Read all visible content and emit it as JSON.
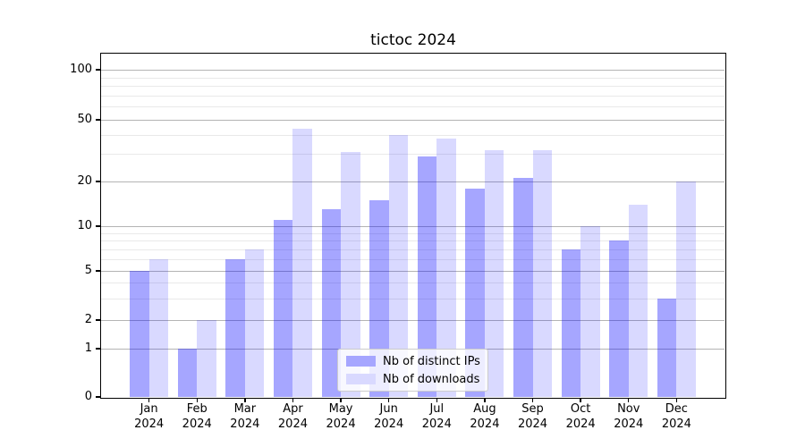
{
  "title": "tictoc 2024",
  "chart_data": {
    "type": "bar",
    "title": "tictoc 2024",
    "categories": [
      "Jan 2024",
      "Feb 2024",
      "Mar 2024",
      "Apr 2024",
      "May 2024",
      "Jun 2024",
      "Jul 2024",
      "Aug 2024",
      "Sep 2024",
      "Oct 2024",
      "Nov 2024",
      "Dec 2024"
    ],
    "x_months": [
      "Jan",
      "Feb",
      "Mar",
      "Apr",
      "May",
      "Jun",
      "Jul",
      "Aug",
      "Sep",
      "Oct",
      "Nov",
      "Dec"
    ],
    "x_year": "2024",
    "series": [
      {
        "name": "Nb of distinct IPs",
        "values": [
          5,
          1,
          6,
          11,
          13,
          15,
          29,
          18,
          21,
          7,
          8,
          3
        ],
        "solid_color": "#a6a6ff",
        "css_color": "rgba(0,0,255,0.35)"
      },
      {
        "name": "Nb of downloads",
        "values": [
          6,
          2,
          7,
          44,
          31,
          40,
          38,
          32,
          32,
          10,
          14,
          20
        ],
        "solid_color": "#d9d9ff",
        "css_color": "rgba(0,0,255,0.15)"
      }
    ],
    "yscale": "symlog",
    "major_yticks": [
      0,
      1,
      2,
      5,
      10,
      20,
      50,
      100
    ],
    "minor_yticks": [
      3,
      4,
      6,
      7,
      8,
      9,
      30,
      40,
      60,
      70,
      80,
      90
    ],
    "ylim": [
      0,
      130
    ],
    "grid": true,
    "legend_position": "lower center"
  },
  "legend": {
    "items": [
      {
        "label": "Nb of distinct IPs",
        "color": "#a6a6ff"
      },
      {
        "label": "Nb of downloads",
        "color": "#d9d9ff"
      }
    ]
  }
}
